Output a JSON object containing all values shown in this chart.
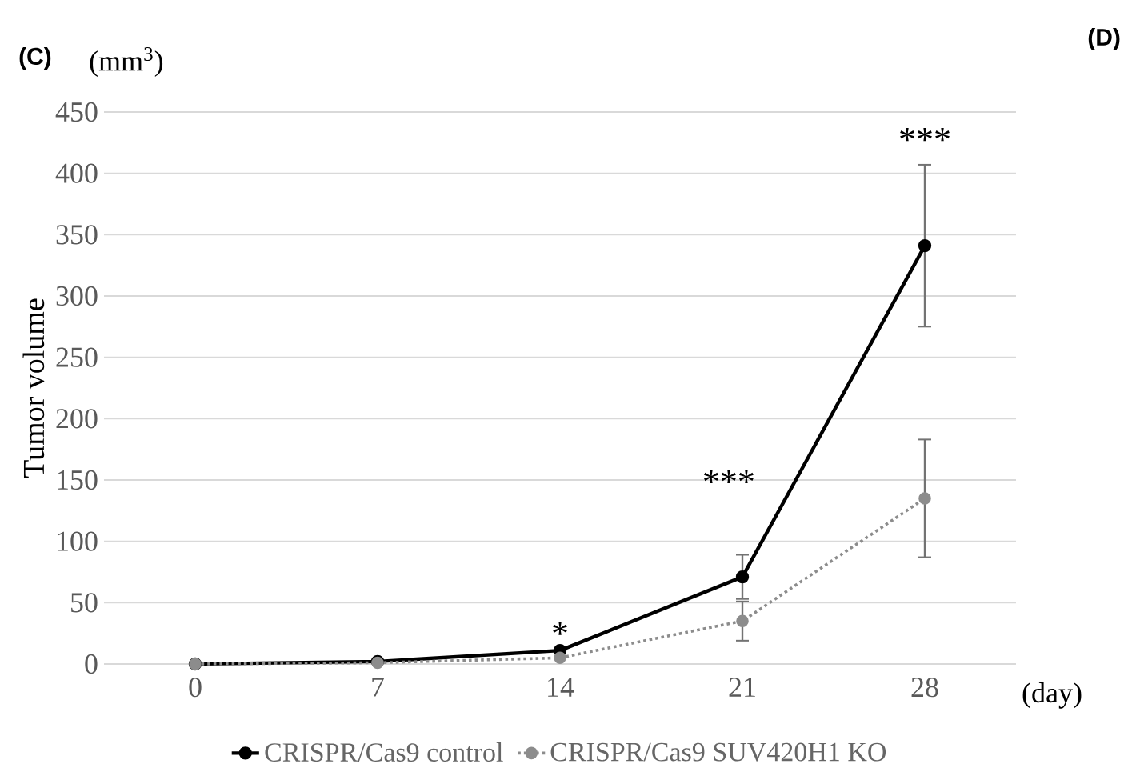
{
  "chart_data": {
    "type": "line",
    "ylabel": "Tumor volume",
    "xlabel": "(day)",
    "categories": [
      "0",
      "7",
      "14",
      "21",
      "28"
    ],
    "series": [
      {
        "name": "CRISPR/Cas9 control",
        "color": "#000000",
        "line_style": "solid",
        "values": [
          0,
          2,
          11,
          71,
          341
        ],
        "errors": [
          null,
          null,
          null,
          18,
          66
        ]
      },
      {
        "name": "CRISPR/Cas9 SUV420H1 KO",
        "color": "#8c8c8c",
        "line_style": "dotted",
        "values": [
          0,
          1,
          5,
          35,
          135
        ],
        "errors": [
          null,
          null,
          null,
          16,
          48
        ]
      }
    ],
    "ylim": [
      0,
      450
    ],
    "yticks": [
      0,
      50,
      100,
      150,
      200,
      250,
      300,
      350,
      400,
      450
    ],
    "grid": "y",
    "legend": "bottom",
    "marker": "circle",
    "annotations": [
      "(C)",
      "(D)",
      "(mm$^{3}$)",
      "*",
      "***",
      "***"
    ]
  }
}
